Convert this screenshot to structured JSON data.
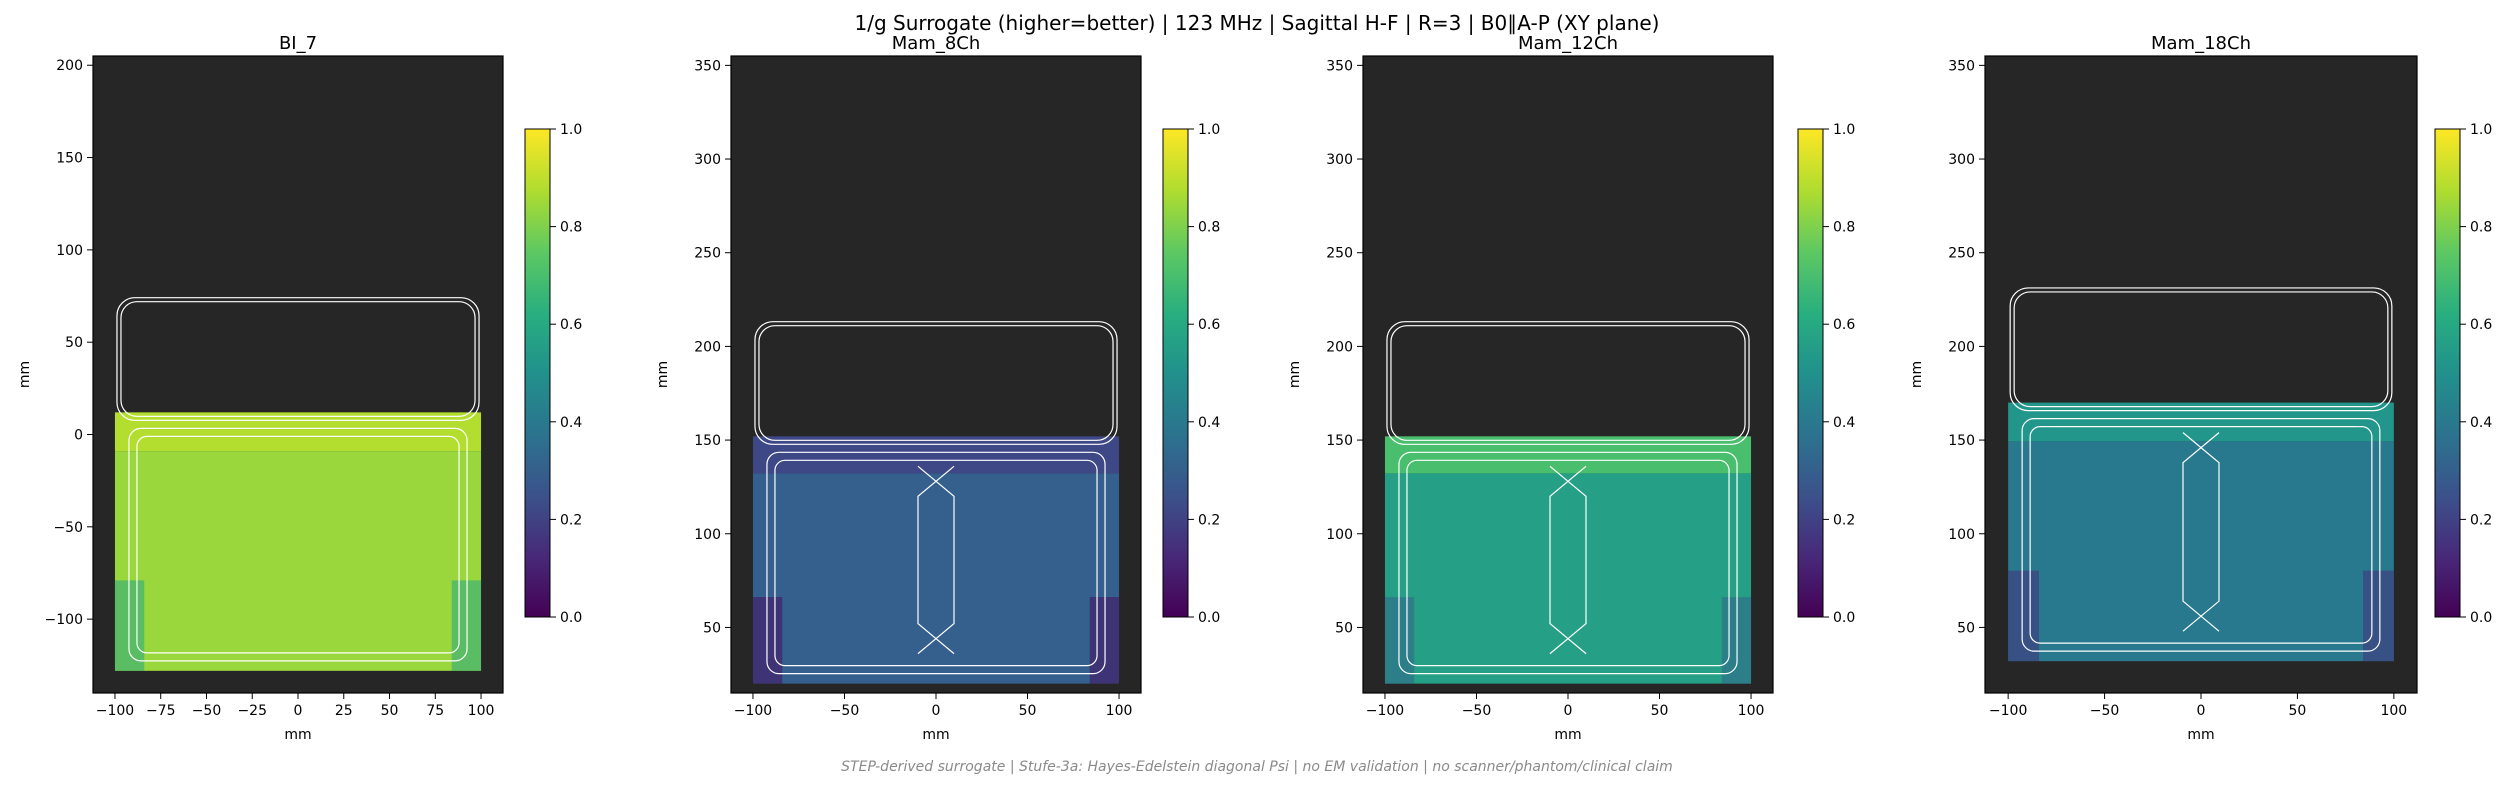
{
  "figure": {
    "title": "1/g Surrogate (higher=better) | 123 MHz | Sagittal H-F | R=3 | B0∥A-P (XY plane)",
    "footer": "STEP-derived surrogate | Stufe-3a: Hayes-Edelstein diagonal Psi | no EM validation | no scanner/phantom/clinical claim"
  },
  "colors": {
    "background": "#262626",
    "coil_outline": "#ffffff",
    "colormap": [
      "#440154",
      "#3b528b",
      "#21918c",
      "#5ec962",
      "#fde725"
    ]
  },
  "chart_data": [
    {
      "type": "heatmap",
      "title": "BI_7",
      "xlabel": "mm",
      "ylabel": "mm",
      "xlim": [
        -112,
        112
      ],
      "ylim": [
        -140,
        205
      ],
      "xticks": [
        -100,
        -75,
        -50,
        -25,
        0,
        25,
        50,
        75,
        100
      ],
      "yticks": [
        -100,
        -50,
        0,
        50,
        100,
        150,
        200
      ],
      "phantom": {
        "x": [
          -100,
          100
        ],
        "y": [
          -128,
          12
        ]
      },
      "mean_value_upper": 0.88,
      "mean_value_lower": 0.84,
      "colorbar": {
        "range": [
          0.0,
          1.0
        ],
        "ticks": [
          "0.0",
          "0.2",
          "0.4",
          "0.6",
          "0.8",
          "1.0"
        ]
      }
    },
    {
      "type": "heatmap",
      "title": "Mam_8Ch",
      "xlabel": "mm",
      "ylabel": "mm",
      "xlim": [
        -112,
        112
      ],
      "ylim": [
        15,
        355
      ],
      "xticks": [
        -100,
        -50,
        0,
        50,
        100
      ],
      "yticks": [
        50,
        100,
        150,
        200,
        250,
        300,
        350
      ],
      "phantom": {
        "x": [
          -100,
          100
        ],
        "y": [
          20,
          152
        ]
      },
      "mean_value_upper": 0.22,
      "mean_value_lower": 0.3,
      "colorbar": {
        "range": [
          0.0,
          1.0
        ],
        "ticks": [
          "0.0",
          "0.2",
          "0.4",
          "0.6",
          "0.8",
          "1.0"
        ]
      }
    },
    {
      "type": "heatmap",
      "title": "Mam_12Ch",
      "xlabel": "mm",
      "ylabel": "mm",
      "xlim": [
        -112,
        112
      ],
      "ylim": [
        15,
        355
      ],
      "xticks": [
        -100,
        -50,
        0,
        50,
        100
      ],
      "yticks": [
        50,
        100,
        150,
        200,
        250,
        300,
        350
      ],
      "phantom": {
        "x": [
          -100,
          100
        ],
        "y": [
          20,
          152
        ]
      },
      "mean_value_upper": 0.7,
      "mean_value_lower": 0.56,
      "colorbar": {
        "range": [
          0.0,
          1.0
        ],
        "ticks": [
          "0.0",
          "0.2",
          "0.4",
          "0.6",
          "0.8",
          "1.0"
        ]
      }
    },
    {
      "type": "heatmap",
      "title": "Mam_18Ch",
      "xlabel": "mm",
      "ylabel": "mm",
      "xlim": [
        -112,
        112
      ],
      "ylim": [
        15,
        355
      ],
      "xticks": [
        -100,
        -50,
        0,
        50,
        100
      ],
      "yticks": [
        50,
        100,
        150,
        200,
        250,
        300,
        350
      ],
      "phantom": {
        "x": [
          -100,
          100
        ],
        "y": [
          32,
          170
        ]
      },
      "mean_value_upper": 0.52,
      "mean_value_lower": 0.4,
      "colorbar": {
        "range": [
          0.0,
          1.0
        ],
        "ticks": [
          "0.0",
          "0.2",
          "0.4",
          "0.6",
          "0.8",
          "1.0"
        ]
      }
    }
  ]
}
